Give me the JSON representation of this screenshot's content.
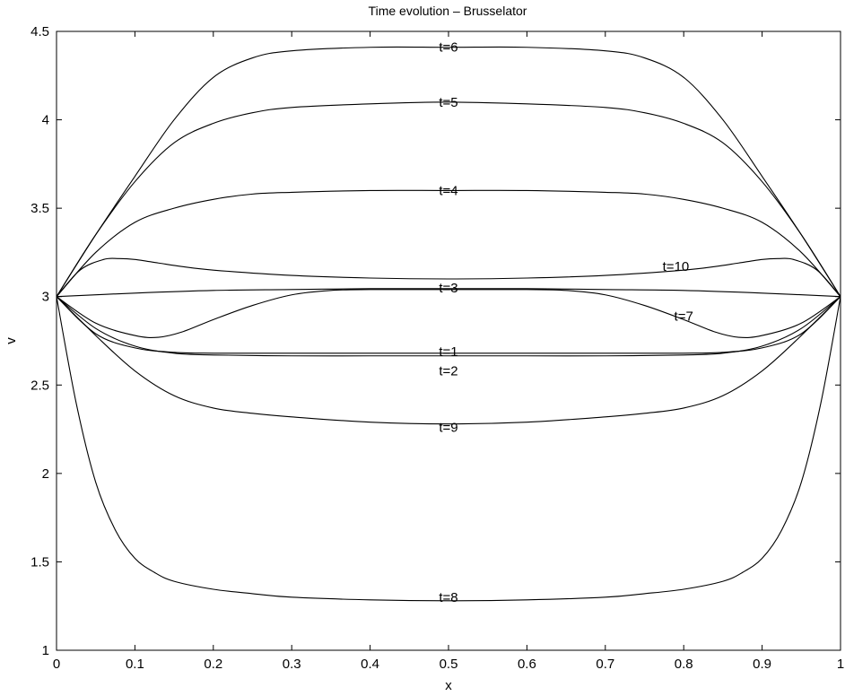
{
  "chart_data": {
    "type": "line",
    "title": "Time evolution – Brusselator",
    "xlabel": "x",
    "ylabel": "v",
    "xlim": [
      0,
      1
    ],
    "ylim": [
      1,
      4.5
    ],
    "xticks": [
      "0",
      "0.1",
      "0.2",
      "0.3",
      "0.4",
      "0.5",
      "0.6",
      "0.7",
      "0.8",
      "0.9",
      "1"
    ],
    "yticks": [
      "1",
      "1.5",
      "2",
      "2.5",
      "3",
      "3.5",
      "4",
      "4.5"
    ],
    "grid": false,
    "legend": "none",
    "series": [
      {
        "name": "t=1",
        "label_at": [
          0.5,
          2.69
        ],
        "x": [
          0,
          0.05,
          0.1,
          0.15,
          0.2,
          0.3,
          0.4,
          0.5,
          0.6,
          0.7,
          0.8,
          0.85,
          0.9,
          0.95,
          1
        ],
        "y": [
          3,
          2.79,
          2.71,
          2.685,
          2.68,
          2.68,
          2.68,
          2.68,
          2.68,
          2.68,
          2.68,
          2.685,
          2.71,
          2.79,
          3
        ]
      },
      {
        "name": "t=2",
        "label_at": [
          0.5,
          2.58
        ],
        "x": [
          0,
          0.05,
          0.1,
          0.15,
          0.2,
          0.3,
          0.4,
          0.5,
          0.6,
          0.7,
          0.8,
          0.85,
          0.9,
          0.95,
          1
        ],
        "y": [
          3,
          2.82,
          2.72,
          2.68,
          2.67,
          2.665,
          2.665,
          2.665,
          2.665,
          2.665,
          2.67,
          2.68,
          2.72,
          2.82,
          3
        ]
      },
      {
        "name": "t=3",
        "label_at": [
          0.5,
          3.05
        ],
        "x": [
          0,
          0.1,
          0.2,
          0.3,
          0.4,
          0.5,
          0.6,
          0.7,
          0.8,
          0.9,
          1
        ],
        "y": [
          3,
          3.02,
          3.035,
          3.04,
          3.045,
          3.045,
          3.045,
          3.04,
          3.035,
          3.02,
          3
        ]
      },
      {
        "name": "t=4",
        "label_at": [
          0.5,
          3.6
        ],
        "x": [
          0,
          0.05,
          0.1,
          0.15,
          0.2,
          0.25,
          0.3,
          0.4,
          0.5,
          0.6,
          0.7,
          0.75,
          0.8,
          0.85,
          0.9,
          0.95,
          1
        ],
        "y": [
          3,
          3.25,
          3.42,
          3.5,
          3.55,
          3.58,
          3.59,
          3.6,
          3.6,
          3.6,
          3.59,
          3.58,
          3.55,
          3.5,
          3.42,
          3.25,
          3
        ]
      },
      {
        "name": "t=5",
        "label_at": [
          0.5,
          4.1
        ],
        "x": [
          0,
          0.05,
          0.1,
          0.15,
          0.2,
          0.25,
          0.3,
          0.4,
          0.5,
          0.6,
          0.7,
          0.75,
          0.8,
          0.85,
          0.9,
          0.95,
          1
        ],
        "y": [
          3,
          3.35,
          3.65,
          3.87,
          3.98,
          4.04,
          4.07,
          4.09,
          4.1,
          4.09,
          4.07,
          4.04,
          3.98,
          3.87,
          3.65,
          3.35,
          3
        ]
      },
      {
        "name": "t=6",
        "label_at": [
          0.5,
          4.41
        ],
        "x": [
          0,
          0.05,
          0.1,
          0.15,
          0.2,
          0.25,
          0.3,
          0.4,
          0.5,
          0.6,
          0.7,
          0.75,
          0.8,
          0.85,
          0.9,
          0.95,
          1
        ],
        "y": [
          3,
          3.35,
          3.68,
          4.0,
          4.24,
          4.35,
          4.39,
          4.41,
          4.41,
          4.41,
          4.39,
          4.35,
          4.24,
          4.0,
          3.68,
          3.35,
          3
        ]
      },
      {
        "name": "t=7",
        "label_at": [
          0.8,
          2.89
        ],
        "x": [
          0,
          0.05,
          0.1,
          0.13,
          0.16,
          0.2,
          0.25,
          0.3,
          0.35,
          0.4,
          0.5,
          0.6,
          0.65,
          0.7,
          0.75,
          0.8,
          0.84,
          0.87,
          0.9,
          0.95,
          1
        ],
        "y": [
          3,
          2.85,
          2.78,
          2.77,
          2.8,
          2.87,
          2.95,
          3.01,
          3.035,
          3.04,
          3.04,
          3.04,
          3.035,
          3.01,
          2.95,
          2.87,
          2.8,
          2.77,
          2.78,
          2.85,
          3
        ]
      },
      {
        "name": "t=8",
        "label_at": [
          0.5,
          1.3
        ],
        "x": [
          0,
          0.025,
          0.05,
          0.075,
          0.1,
          0.125,
          0.15,
          0.2,
          0.25,
          0.3,
          0.4,
          0.5,
          0.6,
          0.7,
          0.75,
          0.8,
          0.85,
          0.875,
          0.9,
          0.925,
          0.95,
          0.975,
          1
        ],
        "y": [
          3,
          2.4,
          1.95,
          1.68,
          1.52,
          1.44,
          1.39,
          1.345,
          1.32,
          1.3,
          1.285,
          1.28,
          1.285,
          1.3,
          1.32,
          1.345,
          1.39,
          1.44,
          1.52,
          1.68,
          1.95,
          2.4,
          3
        ]
      },
      {
        "name": "t=9",
        "label_at": [
          0.5,
          2.26
        ],
        "x": [
          0,
          0.05,
          0.1,
          0.15,
          0.2,
          0.25,
          0.3,
          0.4,
          0.5,
          0.6,
          0.7,
          0.75,
          0.8,
          0.85,
          0.9,
          0.95,
          1
        ],
        "y": [
          3,
          2.78,
          2.58,
          2.44,
          2.37,
          2.34,
          2.32,
          2.29,
          2.28,
          2.29,
          2.32,
          2.34,
          2.37,
          2.44,
          2.58,
          2.78,
          3
        ]
      },
      {
        "name": "t=10",
        "label_at": [
          0.79,
          3.17
        ],
        "x": [
          0,
          0.03,
          0.06,
          0.08,
          0.1,
          0.13,
          0.16,
          0.2,
          0.3,
          0.4,
          0.5,
          0.6,
          0.7,
          0.8,
          0.84,
          0.87,
          0.9,
          0.92,
          0.94,
          0.97,
          1
        ],
        "y": [
          3,
          3.15,
          3.21,
          3.215,
          3.21,
          3.19,
          3.17,
          3.15,
          3.12,
          3.105,
          3.1,
          3.105,
          3.12,
          3.15,
          3.17,
          3.19,
          3.21,
          3.215,
          3.21,
          3.15,
          3
        ]
      }
    ]
  }
}
